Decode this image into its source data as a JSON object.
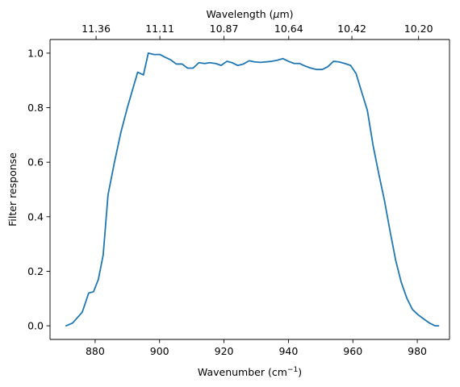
{
  "chart_data": {
    "type": "line",
    "xlabel_main": "Wavenumber (cm",
    "xlabel_sup": "−1",
    "xlabel_tail": ")",
    "ylabel": "Filter response",
    "top_xlabel_main": "Wavelength (",
    "top_xlabel_mu": "μ",
    "top_xlabel_tail": "m)",
    "xlim": [
      866,
      990
    ],
    "ylim": [
      -0.05,
      1.05
    ],
    "x_ticks": [
      880,
      900,
      920,
      940,
      960,
      980
    ],
    "x_tick_labels": [
      "880",
      "900",
      "920",
      "940",
      "960",
      "980"
    ],
    "y_ticks": [
      0.0,
      0.2,
      0.4,
      0.6,
      0.8,
      1.0
    ],
    "y_tick_labels": [
      "0.0",
      "0.2",
      "0.4",
      "0.6",
      "0.8",
      "1.0"
    ],
    "top_ticks": [
      880.3,
      900.1,
      920,
      940.1,
      959.7,
      980.4
    ],
    "top_tick_labels": [
      "11.36",
      "11.11",
      "10.87",
      "10.64",
      "10.42",
      "10.20"
    ],
    "grid": false,
    "series": [
      {
        "color": "#1f77b4",
        "x": [
          871,
          873,
          876,
          878,
          879.5,
          881,
          882.5,
          884,
          886,
          888,
          890,
          891.6,
          893.2,
          895,
          896.5,
          898.3,
          900.1,
          901.7,
          903.5,
          905.2,
          907,
          908.7,
          910.4,
          912.2,
          914,
          915.6,
          917.4,
          919.1,
          920.9,
          922.5,
          924.3,
          926,
          927.8,
          929.5,
          931.3,
          933,
          934.8,
          936.5,
          938.3,
          940,
          941.8,
          943.5,
          945.3,
          947,
          948.8,
          950.5,
          952.2,
          954,
          955.7,
          957.5,
          959.3,
          961,
          962.8,
          964.5,
          966.3,
          968,
          969.8,
          971.5,
          973.3,
          975,
          976.8,
          978.5,
          980.3,
          982,
          983.8,
          985.5,
          986.6
        ],
        "y": [
          0.0,
          0.01,
          0.05,
          0.12,
          0.125,
          0.17,
          0.26,
          0.48,
          0.6,
          0.71,
          0.8,
          0.865,
          0.93,
          0.92,
          1.0,
          0.995,
          0.995,
          0.985,
          0.975,
          0.96,
          0.96,
          0.945,
          0.945,
          0.965,
          0.962,
          0.965,
          0.962,
          0.955,
          0.97,
          0.965,
          0.955,
          0.96,
          0.972,
          0.968,
          0.966,
          0.968,
          0.97,
          0.974,
          0.98,
          0.97,
          0.962,
          0.962,
          0.952,
          0.945,
          0.94,
          0.94,
          0.95,
          0.97,
          0.968,
          0.962,
          0.955,
          0.925,
          0.855,
          0.79,
          0.66,
          0.56,
          0.46,
          0.35,
          0.24,
          0.16,
          0.1,
          0.06,
          0.04,
          0.025,
          0.01,
          0.0,
          0.0
        ]
      }
    ]
  }
}
